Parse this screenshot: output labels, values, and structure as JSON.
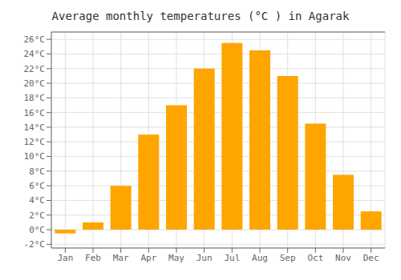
{
  "chart_data": {
    "type": "bar",
    "title": "Average monthly temperatures (°C ) in Agarak",
    "categories": [
      "Jan",
      "Feb",
      "Mar",
      "Apr",
      "May",
      "Jun",
      "Jul",
      "Aug",
      "Sep",
      "Oct",
      "Nov",
      "Dec"
    ],
    "values": [
      -0.5,
      1.0,
      6.0,
      13.0,
      17.0,
      22.0,
      25.5,
      24.5,
      21.0,
      14.5,
      7.5,
      2.5
    ],
    "color": "#FFA500",
    "ylim": [
      -2.5,
      27
    ],
    "yticks": [
      {
        "value": -2,
        "label": "-2°C"
      },
      {
        "value": 0,
        "label": "0°C"
      },
      {
        "value": 2,
        "label": "2°C"
      },
      {
        "value": 4,
        "label": "4°C"
      },
      {
        "value": 6,
        "label": "6°C"
      },
      {
        "value": 8,
        "label": "8°C"
      },
      {
        "value": 10,
        "label": "10°C"
      },
      {
        "value": 12,
        "label": "12°C"
      },
      {
        "value": 14,
        "label": "14°C"
      },
      {
        "value": 16,
        "label": "16°C"
      },
      {
        "value": 18,
        "label": "18°C"
      },
      {
        "value": 20,
        "label": "20°C"
      },
      {
        "value": 22,
        "label": "22°C"
      },
      {
        "value": 24,
        "label": "24°C"
      },
      {
        "value": 26,
        "label": "26°C"
      }
    ],
    "grid": true
  }
}
